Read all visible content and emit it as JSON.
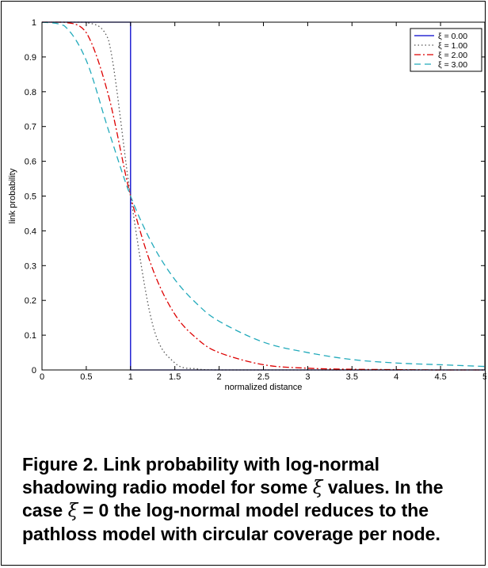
{
  "chart_data": {
    "type": "line",
    "title": "",
    "xlabel": "normalized distance",
    "ylabel": "link probability",
    "xlim": [
      0,
      5
    ],
    "ylim": [
      0,
      1
    ],
    "xticks": [
      "0",
      "0.5",
      "1",
      "1.5",
      "2",
      "2.5",
      "3",
      "3.5",
      "4",
      "4.5",
      "5"
    ],
    "yticks": [
      "0",
      "0.1",
      "0.2",
      "0.3",
      "0.4",
      "0.5",
      "0.6",
      "0.7",
      "0.8",
      "0.9",
      "1"
    ],
    "grid": false,
    "legend_position": "top-right",
    "x": [
      0,
      0.25,
      0.5,
      0.75,
      1.0,
      1.25,
      1.5,
      1.75,
      2.0,
      2.5,
      3.0,
      3.5,
      4.0,
      4.5,
      5.0
    ],
    "series": [
      {
        "name": "ξ = 0.00",
        "color": "#0000cc",
        "dash": "solid",
        "values": [
          1,
          1,
          1,
          1,
          0.5,
          0,
          0,
          0,
          0,
          0,
          0,
          0,
          0,
          0,
          0
        ]
      },
      {
        "name": "ξ = 1.00",
        "color": "#555555",
        "dash": "dotted",
        "values": [
          1,
          1,
          1,
          0.95,
          0.5,
          0.13,
          0.02,
          0.003,
          0.0,
          0,
          0,
          0,
          0,
          0,
          0
        ]
      },
      {
        "name": "ξ = 2.00",
        "color": "#dd0000",
        "dash": "dashdot",
        "values": [
          1,
          1,
          0.97,
          0.79,
          0.5,
          0.29,
          0.16,
          0.09,
          0.05,
          0.015,
          0.005,
          0.002,
          0.001,
          0.0,
          0.0
        ]
      },
      {
        "name": "ξ = 3.00",
        "color": "#22aabb",
        "dash": "dashed",
        "values": [
          1,
          0.99,
          0.89,
          0.69,
          0.5,
          0.36,
          0.26,
          0.19,
          0.14,
          0.08,
          0.05,
          0.03,
          0.02,
          0.015,
          0.01
        ]
      }
    ]
  },
  "caption": {
    "part1": "Figure 2. Link probability with log-normal shadowing radio model for some ",
    "symbol1": "ξ",
    "part2": " values. In the case ",
    "symbol2": "ξ",
    "part3": " = 0 the log-normal model reduces to the pathloss model with circular coverage per node."
  }
}
